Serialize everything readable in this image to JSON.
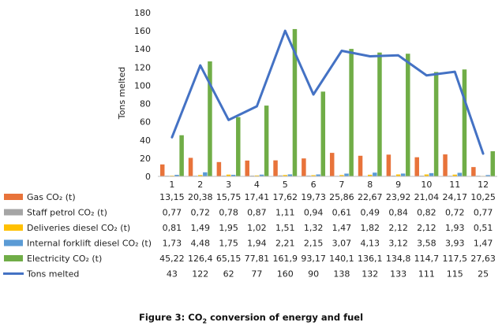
{
  "chart_data": {
    "type": "bar",
    "ylabel": "Tons melted",
    "ylim": [
      0,
      180
    ],
    "ytick_step": 20,
    "grid": false,
    "legend": "data-table",
    "categories": [
      "1",
      "2",
      "3",
      "4",
      "5",
      "6",
      "7",
      "8",
      "9",
      "10",
      "11",
      "12"
    ],
    "series": [
      {
        "name": "Gas CO₂ (t)",
        "type": "bar",
        "color": "#E8733A",
        "values": [
          13.15,
          20.38,
          15.75,
          17.41,
          17.62,
          19.73,
          25.86,
          22.67,
          23.92,
          21.04,
          24.17,
          10.25
        ],
        "labels": [
          "13,15",
          "20,38",
          "15,75",
          "17,41",
          "17,62",
          "19,73",
          "25,86",
          "22,67",
          "23,92",
          "21,04",
          "24,17",
          "10,25"
        ]
      },
      {
        "name": "Staff petrol CO₂ (t)",
        "type": "bar",
        "color": "#A5A5A5",
        "values": [
          0.77,
          0.72,
          0.78,
          0.87,
          1.11,
          0.94,
          0.61,
          0.49,
          0.84,
          0.82,
          0.72,
          0.77
        ],
        "labels": [
          "0,77",
          "0,72",
          "0,78",
          "0,87",
          "1,11",
          "0,94",
          "0,61",
          "0,49",
          "0,84",
          "0,82",
          "0,72",
          "0,77"
        ]
      },
      {
        "name": "Deliveries diesel CO₂ (t)",
        "type": "bar",
        "color": "#FFC000",
        "values": [
          0.81,
          1.49,
          1.95,
          1.02,
          1.51,
          1.32,
          1.47,
          1.82,
          2.12,
          2.12,
          1.93,
          0.51
        ],
        "labels": [
          "0,81",
          "1,49",
          "1,95",
          "1,02",
          "1,51",
          "1,32",
          "1,47",
          "1,82",
          "2,12",
          "2,12",
          "1,93",
          "0,51"
        ]
      },
      {
        "name": "Internal forklift diesel CO₂ (t)",
        "type": "bar",
        "color": "#5B9BD5",
        "values": [
          1.73,
          4.48,
          1.75,
          1.94,
          2.21,
          2.15,
          3.07,
          4.13,
          3.12,
          3.58,
          3.93,
          1.47
        ],
        "labels": [
          "1,73",
          "4,48",
          "1,75",
          "1,94",
          "2,21",
          "2,15",
          "3,07",
          "4,13",
          "3,12",
          "3,58",
          "3,93",
          "1,47"
        ]
      },
      {
        "name": "Electricity CO₂ (t)",
        "type": "bar",
        "color": "#70AD47",
        "values": [
          45.22,
          126.4,
          65.15,
          77.81,
          161.9,
          93.17,
          140.1,
          136.1,
          134.8,
          114.7,
          117.5,
          27.63
        ],
        "labels": [
          "45,22",
          "126,4",
          "65,15",
          "77,81",
          "161,9",
          "93,17",
          "140,1",
          "136,1",
          "134,8",
          "114,7",
          "117,5",
          "27,63"
        ]
      },
      {
        "name": "Tons melted",
        "type": "line",
        "color": "#4472C4",
        "values": [
          43,
          122,
          62,
          77,
          160,
          90,
          138,
          132,
          133,
          111,
          115,
          25
        ],
        "labels": [
          "43",
          "122",
          "62",
          "77",
          "160",
          "90",
          "138",
          "132",
          "133",
          "111",
          "115",
          "25"
        ]
      }
    ]
  },
  "caption": {
    "prefix": "Figure 3: CO",
    "subscript": "2",
    "suffix": " conversion of energy and fuel"
  }
}
